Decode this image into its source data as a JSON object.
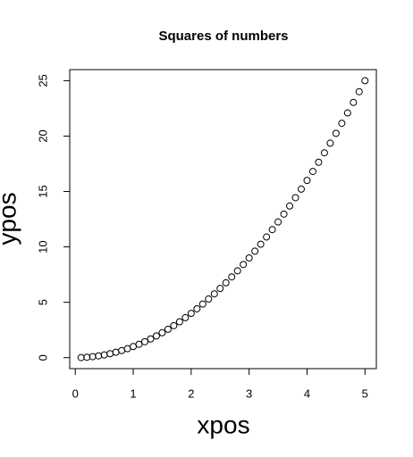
{
  "chart_data": {
    "type": "scatter",
    "title": "Squares of numbers",
    "x_label": "xpos",
    "y_label": "ypos",
    "series": [
      {
        "color": "#000000",
        "x": [
          0.1,
          0.2,
          0.3,
          0.4,
          0.5,
          0.6,
          0.7,
          0.8,
          0.9,
          1,
          1.1,
          1.2,
          1.3,
          1.4,
          1.5,
          1.6,
          1.7,
          1.8,
          1.9,
          2,
          2.1,
          2.2,
          2.3,
          2.4,
          2.5,
          2.6,
          2.7,
          2.8,
          2.9,
          3,
          3.1,
          3.2,
          3.3,
          3.4,
          3.5,
          3.6,
          3.7,
          3.8,
          3.9,
          4,
          4.1,
          4.2,
          4.3,
          4.4,
          4.5,
          4.6,
          4.7,
          4.8,
          4.9,
          5
        ],
        "values": [
          0.01,
          0.04,
          0.09,
          0.16,
          0.25,
          0.36,
          0.49,
          0.64,
          0.81,
          1,
          1.21,
          1.44,
          1.69,
          1.96,
          2.25,
          2.56,
          2.89,
          3.24,
          3.61,
          4,
          4.41,
          4.84,
          5.29,
          5.76,
          6.25,
          6.76,
          7.29,
          7.84,
          8.41,
          9,
          9.61,
          10.24,
          10.89,
          11.56,
          12.25,
          12.96,
          13.69,
          14.44,
          15.21,
          16,
          16.81,
          17.64,
          18.49,
          19.36,
          20.25,
          21.16,
          22.09,
          23.04,
          24.01,
          25
        ]
      }
    ],
    "xlim": [
      -0.096,
      5.196
    ],
    "xticks": [
      0,
      1,
      2,
      3,
      4,
      5
    ],
    "ylim": [
      -0.99,
      26
    ],
    "yticks": [
      0,
      5,
      10,
      15,
      20,
      25
    ]
  }
}
